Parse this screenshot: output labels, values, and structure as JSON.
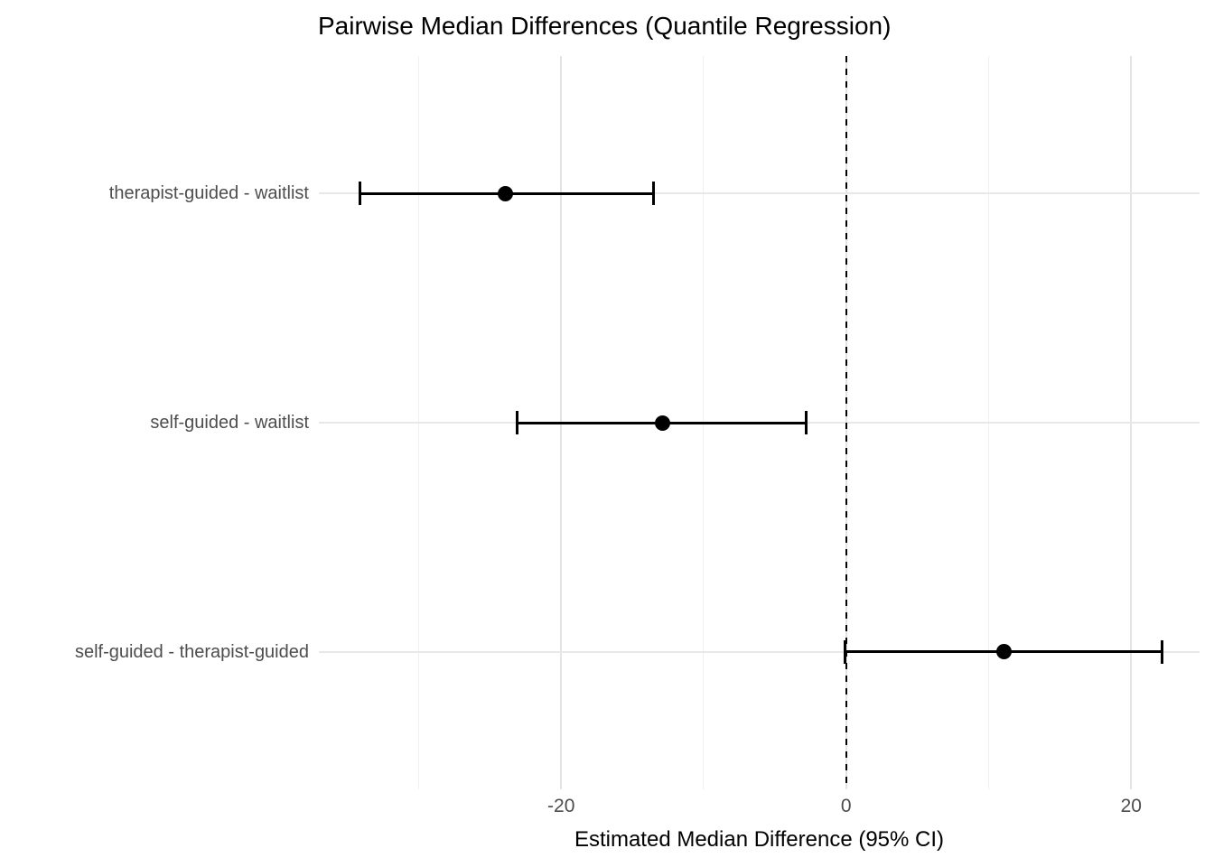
{
  "figure": {
    "background": "#FFFFFF"
  },
  "chart_data": {
    "type": "scatter",
    "subtype": "forest-plot-pointrange",
    "title": "Pairwise Median Differences (Quantile Regression)",
    "xlabel": "Estimated Median Difference (95% CI)",
    "ylabel": "",
    "legend": "none",
    "grid": "vertical major+minor light gray, one horizontal gridline per category",
    "xlim": [
      -37,
      24.8
    ],
    "x_major_ticks": [
      -20,
      0,
      20
    ],
    "x_minor_gridlines": [
      -30,
      -10,
      10
    ],
    "reference_line": {
      "x": 0,
      "style": "dashed",
      "color": "#000000"
    },
    "categories": [
      "therapist-guided - waitlist",
      "self-guided - waitlist",
      "self-guided - therapist-guided"
    ],
    "series": [
      {
        "name": "estimated median difference (95% CI)",
        "points": [
          {
            "label": "therapist-guided - waitlist",
            "estimate": -23.9,
            "lower": -34.1,
            "upper": -13.5
          },
          {
            "label": "self-guided - waitlist",
            "estimate": -12.9,
            "lower": -23.1,
            "upper": -2.8
          },
          {
            "label": "self-guided - therapist-guided",
            "estimate": 11.1,
            "lower": -0.1,
            "upper": 22.2
          }
        ]
      }
    ],
    "colors": {
      "point": "#000000",
      "errorbar": "#000000",
      "reference_line": "#000000",
      "grid_major": "#E4E4E4",
      "grid_minor": "#F0F0F0",
      "horizontal_grid": "#E8E8E8",
      "tick_label": "#4D4D4D",
      "category_label": "#4D4D4D",
      "title": "#000000",
      "axis_title": "#000000"
    }
  }
}
